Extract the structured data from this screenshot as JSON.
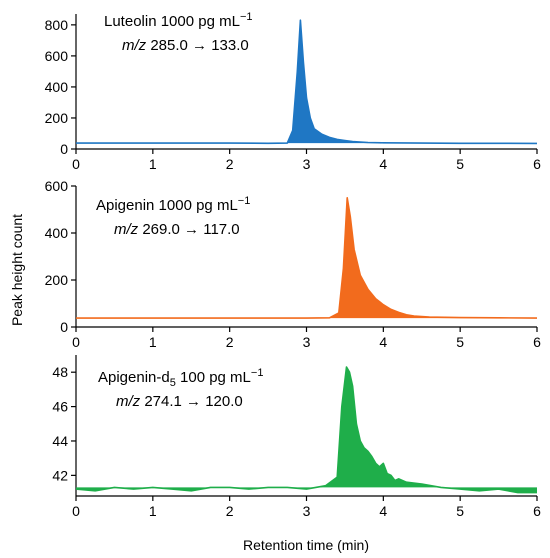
{
  "figure": {
    "xlabel": "Retention time (min)",
    "ylabel": "Peak height count"
  },
  "chart_data": [
    {
      "type": "line",
      "name": "panel-luteolin",
      "color": "#1f77c4",
      "annotation": {
        "compound": "Luteolin",
        "subscript": "",
        "conc": " 1000 pg mL",
        "exp": "−1",
        "mz_label": "m/z",
        "transition": " 285.0 → 133.0"
      },
      "xlim": [
        0,
        6
      ],
      "ylim": [
        0,
        870
      ],
      "xticks": [
        0,
        1,
        2,
        3,
        4,
        5,
        6
      ],
      "yticks": [
        0,
        200,
        400,
        600,
        800
      ],
      "grid": false,
      "baseline": 38,
      "series": [
        {
          "x": [
            0,
            0.5,
            1,
            1.5,
            2,
            2.5,
            2.75,
            2.82,
            2.88,
            2.92,
            2.96,
            3.0,
            3.05,
            3.1,
            3.2,
            3.3,
            3.4,
            3.5,
            3.6,
            3.8,
            4.0,
            4.5,
            5,
            5.5,
            6
          ],
          "y": [
            38,
            38,
            38,
            38,
            38,
            37,
            38,
            120,
            500,
            830,
            560,
            330,
            200,
            130,
            95,
            75,
            62,
            55,
            48,
            42,
            40,
            38,
            37,
            37,
            36
          ]
        }
      ]
    },
    {
      "type": "line",
      "name": "panel-apigenin",
      "color": "#f26b1d",
      "annotation": {
        "compound": "Apigenin",
        "subscript": "",
        "conc": " 1000 pg mL",
        "exp": "−1",
        "mz_label": "m/z",
        "transition": " 269.0 → 117.0"
      },
      "xlim": [
        0,
        6
      ],
      "ylim": [
        0,
        600
      ],
      "xticks": [
        0,
        1,
        2,
        3,
        4,
        5,
        6
      ],
      "yticks": [
        0,
        200,
        400,
        600
      ],
      "grid": false,
      "baseline": 38,
      "series": [
        {
          "x": [
            0,
            0.5,
            1,
            1.5,
            2,
            2.5,
            3,
            3.3,
            3.42,
            3.48,
            3.53,
            3.57,
            3.62,
            3.7,
            3.8,
            3.9,
            4.0,
            4.1,
            4.2,
            4.3,
            4.4,
            4.6,
            5,
            5.5,
            6
          ],
          "y": [
            38,
            38,
            38,
            38,
            38,
            38,
            38,
            39,
            60,
            250,
            550,
            470,
            330,
            220,
            160,
            120,
            95,
            75,
            62,
            52,
            47,
            42,
            40,
            39,
            38
          ]
        }
      ]
    },
    {
      "type": "line",
      "name": "panel-apigenin-d5",
      "color": "#1fae4a",
      "annotation": {
        "compound": "Apigenin-d",
        "subscript": "5",
        "conc": " 100 pg mL",
        "exp": "−1",
        "mz_label": "m/z",
        "transition": " 274.1 → 120.0"
      },
      "xlim": [
        0,
        6
      ],
      "ylim": [
        40.8,
        49
      ],
      "xticks": [
        0,
        1,
        2,
        3,
        4,
        5,
        6
      ],
      "yticks": [
        42,
        44,
        46,
        48
      ],
      "grid": false,
      "baseline": 41.3,
      "series": [
        {
          "x": [
            0,
            0.25,
            0.5,
            0.75,
            1,
            1.25,
            1.5,
            1.75,
            2,
            2.25,
            2.5,
            2.75,
            3,
            3.25,
            3.4,
            3.46,
            3.52,
            3.56,
            3.6,
            3.65,
            3.7,
            3.75,
            3.8,
            3.85,
            3.9,
            3.95,
            4.0,
            4.05,
            4.1,
            4.15,
            4.2,
            4.3,
            4.5,
            4.75,
            5,
            5.25,
            5.5,
            5.75,
            6
          ],
          "y": [
            41.2,
            41.1,
            41.3,
            41.2,
            41.3,
            41.2,
            41.1,
            41.3,
            41.3,
            41.2,
            41.3,
            41.3,
            41.2,
            41.4,
            41.9,
            46.0,
            48.3,
            48.0,
            47.2,
            45.0,
            44.0,
            43.6,
            43.4,
            43.1,
            42.7,
            42.5,
            42.7,
            42.1,
            42.0,
            41.7,
            41.8,
            41.6,
            41.5,
            41.3,
            41.2,
            41.1,
            41.2,
            41.0,
            41.0
          ]
        }
      ]
    }
  ]
}
